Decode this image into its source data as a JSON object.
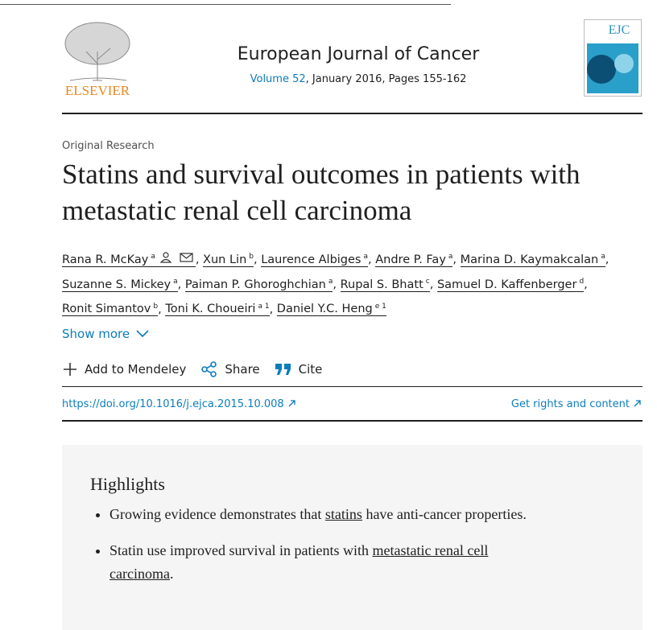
{
  "header": {
    "publisher": "ELSEVIER",
    "journal": "European Journal of Cancer",
    "volume": "Volume 52",
    "issue_info": ", January 2016, Pages 155-162",
    "cover_label": "EJC"
  },
  "article": {
    "type": "Original Research",
    "title": "Statins and survival outcomes in patients with metastatic renal cell carcinoma",
    "separator": ",",
    "authors": [
      {
        "name": "Rana R. McKay",
        "sup": "a",
        "contact": true
      },
      {
        "name": "Xun Lin",
        "sup": "b"
      },
      {
        "name": "Laurence Albiges",
        "sup": "a"
      },
      {
        "name": "Andre P. Fay",
        "sup": "a"
      },
      {
        "name": "Marina D. Kaymakcalan",
        "sup": "a"
      },
      {
        "name": "Suzanne S. Mickey",
        "sup": "a"
      },
      {
        "name": "Paiman P. Ghoroghchian",
        "sup": "a"
      },
      {
        "name": "Rupal S. Bhatt",
        "sup": "c"
      },
      {
        "name": "Samuel D. Kaffenberger",
        "sup": "d"
      },
      {
        "name": "Ronit Simantov",
        "sup": "b"
      },
      {
        "name": "Toni K. Choueiri",
        "sup": "a 1"
      },
      {
        "name": "Daniel Y.C. Heng",
        "sup": "e 1"
      }
    ],
    "show_more": "Show more",
    "actions": [
      "Add to Mendeley",
      "Share",
      "Cite"
    ],
    "doi": "https://doi.org/10.1016/j.ejca.2015.10.008",
    "rights": "Get rights and content"
  },
  "highlights": {
    "title": "Highlights",
    "items": [
      [
        {
          "text": "Growing evidence demonstrates that "
        },
        {
          "text": "statins",
          "link": true
        },
        {
          "text": " have anti-cancer properties."
        }
      ],
      [
        {
          "text": "Statin use improved survival in patients with "
        },
        {
          "text": "metastatic renal cell carcinoma",
          "link": true
        },
        {
          "text": "."
        }
      ]
    ]
  }
}
